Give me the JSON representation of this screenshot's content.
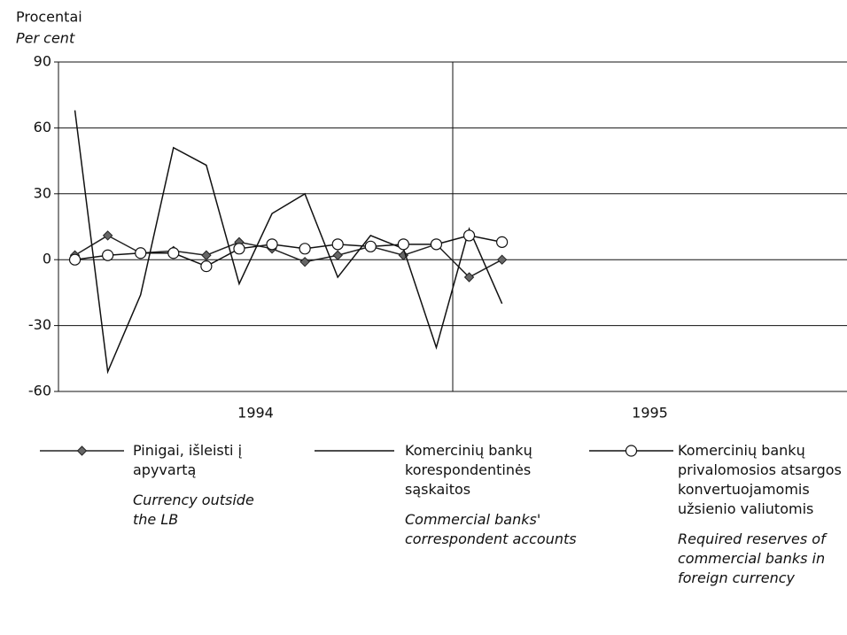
{
  "chart_data": {
    "type": "line",
    "y_label": "Procentai",
    "y_label_en": "Per cent",
    "groups": [
      "1994",
      "1995"
    ],
    "categories": [
      null,
      null,
      null,
      null,
      null,
      null,
      null,
      null,
      null,
      null,
      null,
      null,
      null,
      null,
      null,
      null,
      null,
      null,
      null,
      null,
      null,
      null,
      null,
      null
    ],
    "ylim": [
      -60,
      90
    ],
    "yticks": [
      -60,
      -30,
      0,
      30,
      60,
      90
    ],
    "grid": true,
    "series": [
      {
        "name": "Pinigai, išleisti į apyvartą",
        "name_en": "Currency outside the LB",
        "color": "#222222",
        "marker": "diamond",
        "values": [
          2,
          11,
          3,
          4,
          2,
          8,
          5,
          -1,
          2,
          6,
          2,
          7,
          -8,
          0,
          null,
          null,
          null,
          null,
          null,
          null,
          null,
          null,
          null,
          null
        ]
      },
      {
        "name": "Komercinių bankų korespondentinės sąskaitos",
        "name_en": "Commercial banks' correspondent accounts",
        "color": "#111111",
        "marker": "none",
        "values": [
          68,
          -51,
          -16,
          51,
          43,
          -11,
          21,
          30,
          -8,
          11,
          5,
          -40,
          14,
          -20,
          null,
          null,
          null,
          null,
          null,
          null,
          null,
          null,
          null,
          null
        ]
      },
      {
        "name": "Komercinių bankų privalomosios atsargos konvertuojamomis užsienio valiutomis",
        "name_en": "Required reserves of commercial banks in foreign currency",
        "color": "#111111",
        "marker": "circle",
        "values": [
          0,
          2,
          3,
          3,
          -3,
          5,
          7,
          5,
          7,
          6,
          7,
          7,
          11,
          8,
          null,
          null,
          null,
          null,
          null,
          null,
          null,
          null,
          null,
          null
        ]
      }
    ]
  }
}
